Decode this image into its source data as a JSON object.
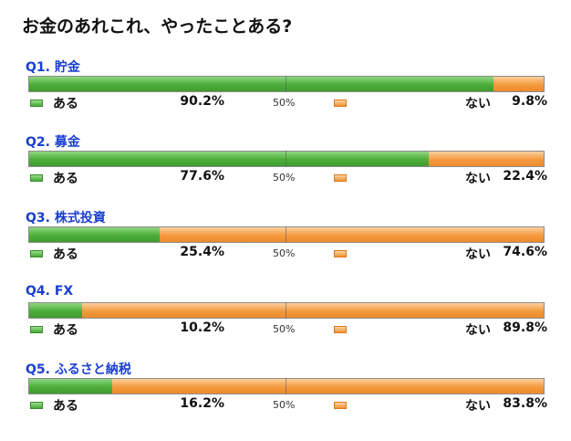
{
  "title": "お金のあれこれ、やったことある?",
  "mid_tick": "50%",
  "yes_label": "ある",
  "no_label": "ない",
  "colors": {
    "yes": "#4cae3a",
    "no": "#f49a3e",
    "question": "#1a3fcf"
  },
  "chart_data": {
    "type": "bar",
    "stacked": true,
    "orientation": "horizontal",
    "xlim": [
      0,
      100
    ],
    "categories": [
      "Q1. 貯金",
      "Q2. 募金",
      "Q3. 株式投資",
      "Q4. FX",
      "Q5. ふるさと納税"
    ],
    "series": [
      {
        "name": "ある",
        "values": [
          90.2,
          77.6,
          25.4,
          10.2,
          16.2
        ],
        "labels": [
          "90.2%",
          "77.6%",
          "25.4%",
          "10.2%",
          "16.2%"
        ]
      },
      {
        "name": "ない",
        "values": [
          9.8,
          22.4,
          74.6,
          89.8,
          83.8
        ],
        "labels": [
          "9.8%",
          "22.4%",
          "74.6%",
          "89.8%",
          "83.8%"
        ]
      }
    ]
  }
}
